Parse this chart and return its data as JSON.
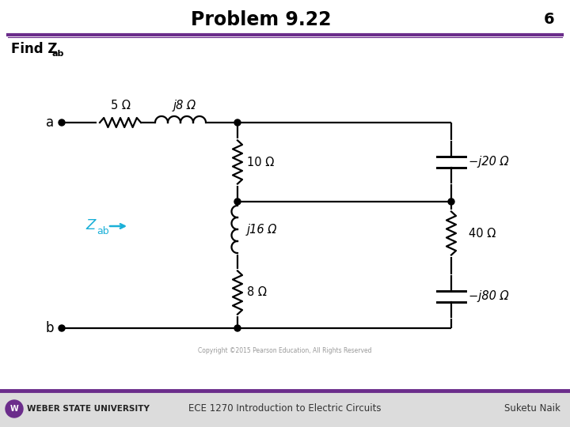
{
  "title": "Problem 9.22",
  "slide_number": "6",
  "find_text": "Find Z",
  "find_sub": "ab",
  "footer_left": "WEBER STATE UNIVERSITY",
  "footer_center": "ECE 1270 Introduction to Electric Circuits",
  "footer_right": "Suketu Naik",
  "copyright": "Copyright ©2015 Pearson Education, All Rights Reserved",
  "bg_color": "#ffffff",
  "title_color": "#000000",
  "header_line_color": "#6b2d8b",
  "footer_bg": "#e8e8e8",
  "footer_line_color": "#6b2d8b",
  "circuit_color": "#000000",
  "zab_color": "#1ab0d8",
  "component_labels": {
    "R1": "5 Ω",
    "L1": "j8 Ω",
    "R2": "10 Ω",
    "L2": "j16 Ω",
    "R3": "8 Ω",
    "C1": "−j20 Ω",
    "R4": "40 Ω",
    "C2": "−j80 Ω"
  }
}
